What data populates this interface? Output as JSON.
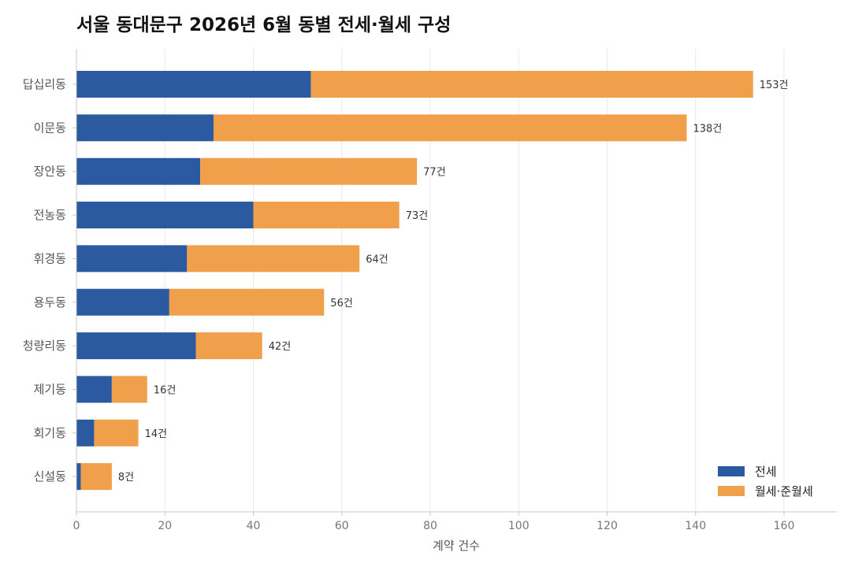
{
  "chart_data": {
    "type": "bar",
    "orientation": "horizontal",
    "stacked": true,
    "title": "서울 동대문구 2026년 6월 동별 전세·월세 구성",
    "xlabel": "계약 건수",
    "ylabel": "",
    "xlim": [
      0,
      172
    ],
    "xticks": [
      0,
      20,
      40,
      60,
      80,
      100,
      120,
      140,
      160
    ],
    "grid": true,
    "legend_position": "bottom-right",
    "categories": [
      "답십리동",
      "이문동",
      "장안동",
      "전농동",
      "휘경동",
      "용두동",
      "청량리동",
      "제기동",
      "회기동",
      "신설동"
    ],
    "series": [
      {
        "name": "전세",
        "color": "#2c5aa0",
        "values": [
          53,
          31,
          28,
          40,
          25,
          21,
          27,
          8,
          4,
          1
        ]
      },
      {
        "name": "월세·준월세",
        "color": "#f0a04b",
        "values": [
          100,
          107,
          49,
          33,
          39,
          35,
          15,
          8,
          10,
          7
        ]
      }
    ],
    "total_labels": [
      "153건",
      "138건",
      "77건",
      "73건",
      "64건",
      "56건",
      "42건",
      "16건",
      "14건",
      "8건"
    ]
  }
}
